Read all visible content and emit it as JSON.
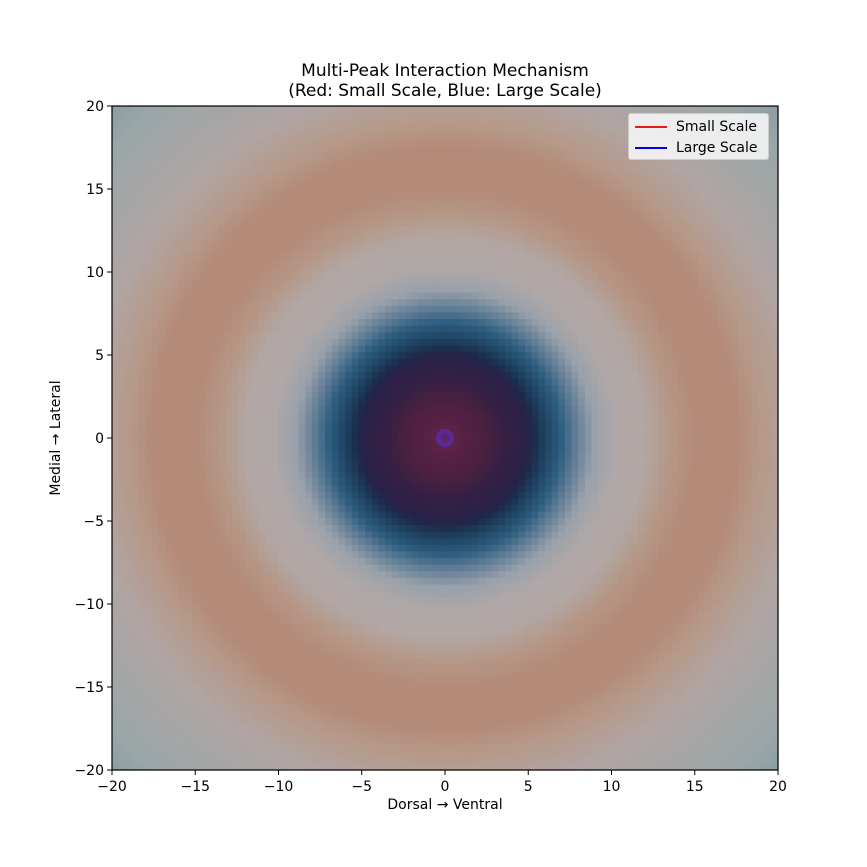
{
  "chart_data": {
    "type": "heatmap",
    "title": "Multi-Peak Interaction Mechanism",
    "subtitle": "(Red: Small Scale, Blue: Large Scale)",
    "xlabel": "Dorsal → Ventral",
    "ylabel": "Medial → Lateral",
    "xlim": [
      -20,
      20
    ],
    "ylim": [
      -20,
      20
    ],
    "xticks": [
      -20,
      -15,
      -10,
      -5,
      0,
      5,
      10,
      15,
      20
    ],
    "yticks": [
      -20,
      -15,
      -10,
      -5,
      0,
      5,
      10,
      15,
      20
    ],
    "xtick_labels": [
      "−20",
      "−15",
      "−10",
      "−5",
      "0",
      "5",
      "10",
      "15",
      "20"
    ],
    "ytick_labels": [
      "−20",
      "−15",
      "−10",
      "−5",
      "0",
      "5",
      "10",
      "15",
      "20"
    ],
    "grid": false,
    "legend_position": "top-right",
    "series": [
      {
        "name": "Small Scale",
        "color": "#e41a1c"
      },
      {
        "name": "Large Scale",
        "color": "#0000ee"
      }
    ],
    "radial_profile": [
      {
        "r": 0.0,
        "color": "#5a2a8a"
      },
      {
        "r": 0.6,
        "color": "#5c2248"
      },
      {
        "r": 2.5,
        "color": "#4a2040"
      },
      {
        "r": 3.5,
        "color": "#362043"
      },
      {
        "r": 4.9,
        "color": "#2a2148"
      },
      {
        "r": 5.3,
        "color": "#1d2a4a"
      },
      {
        "r": 6.0,
        "color": "#1e4260"
      },
      {
        "r": 7.0,
        "color": "#2f5e80"
      },
      {
        "r": 7.8,
        "color": "#5d7b95"
      },
      {
        "r": 9.0,
        "color": "#9aa1aa"
      },
      {
        "r": 10.4,
        "color": "#b0a8a8"
      },
      {
        "r": 12.0,
        "color": "#b2a7a4"
      },
      {
        "r": 13.5,
        "color": "#b59787"
      },
      {
        "r": 15.0,
        "color": "#b48b78"
      },
      {
        "r": 17.5,
        "color": "#b48b78"
      },
      {
        "r": 19.0,
        "color": "#b69989"
      },
      {
        "r": 21.5,
        "color": "#b0a5a4"
      },
      {
        "r": 26.5,
        "color": "#9aa6a8"
      },
      {
        "r": 28.5,
        "color": "#8a9ca2"
      }
    ]
  }
}
